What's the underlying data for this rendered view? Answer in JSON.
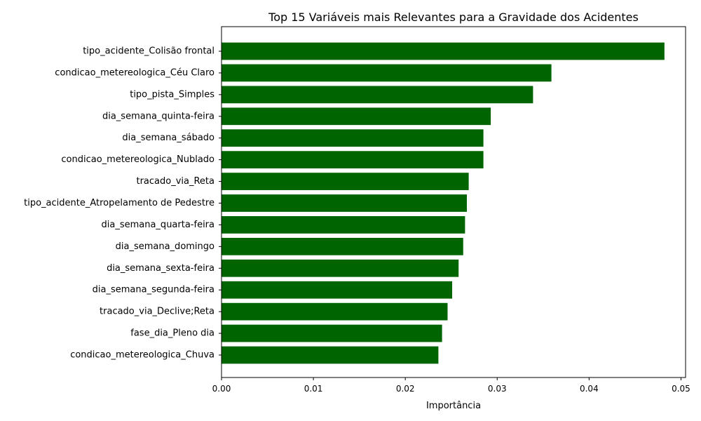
{
  "chart_data": {
    "type": "bar",
    "orientation": "horizontal",
    "title": "Top 15 Variáveis mais Relevantes para a Gravidade dos Acidentes",
    "xlabel": "Importância",
    "ylabel": "",
    "xlim": [
      0,
      0.0505
    ],
    "x_ticks": [
      "0.00",
      "0.01",
      "0.02",
      "0.03",
      "0.04",
      "0.05"
    ],
    "x_tick_values": [
      0,
      0.01,
      0.02,
      0.03,
      0.04,
      0.05
    ],
    "grid": false,
    "bar_color": "#006400",
    "categories": [
      "tipo_acidente_Colisão frontal",
      "condicao_metereologica_Céu Claro",
      "tipo_pista_Simples",
      "dia_semana_quinta-feira",
      "dia_semana_sábado",
      "condicao_metereologica_Nublado",
      "tracado_via_Reta",
      "tipo_acidente_Atropelamento de Pedestre",
      "dia_semana_quarta-feira",
      "dia_semana_domingo",
      "dia_semana_sexta-feira",
      "dia_semana_segunda-feira",
      "tracado_via_Declive;Reta",
      "fase_dia_Pleno dia",
      "condicao_metereologica_Chuva"
    ],
    "values": [
      0.0482,
      0.0359,
      0.0339,
      0.0293,
      0.0285,
      0.0285,
      0.0269,
      0.0267,
      0.0265,
      0.0263,
      0.0258,
      0.0251,
      0.0246,
      0.024,
      0.0236
    ]
  }
}
